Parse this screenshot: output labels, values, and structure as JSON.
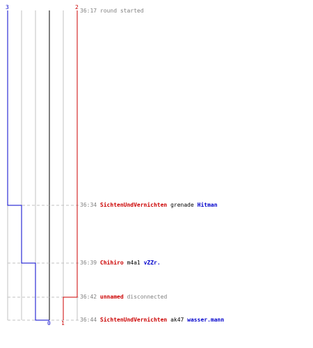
{
  "score": {
    "blue_start": "3",
    "red_end": "2",
    "blue_end": "0",
    "red_start": "1"
  },
  "colors": {
    "blue": "#0000cc",
    "red": "#cc0000",
    "grid": "#c0c0c0",
    "center": "#808080"
  },
  "events": [
    {
      "time": "36:17",
      "message": "round started"
    },
    {
      "time": "36:34",
      "actor": "SichtenUndVernichten",
      "weapon": "grenade",
      "victim": "Hitman"
    },
    {
      "time": "36:39",
      "actor": "Chihiro",
      "weapon": "m4a1",
      "victim": "vZZr."
    },
    {
      "time": "36:42",
      "actor": "unnamed",
      "message": "disconnected"
    },
    {
      "time": "36:44",
      "actor": "SichtenUndVernichten",
      "weapon": "ak47",
      "victim": "wasser.mann"
    }
  ]
}
